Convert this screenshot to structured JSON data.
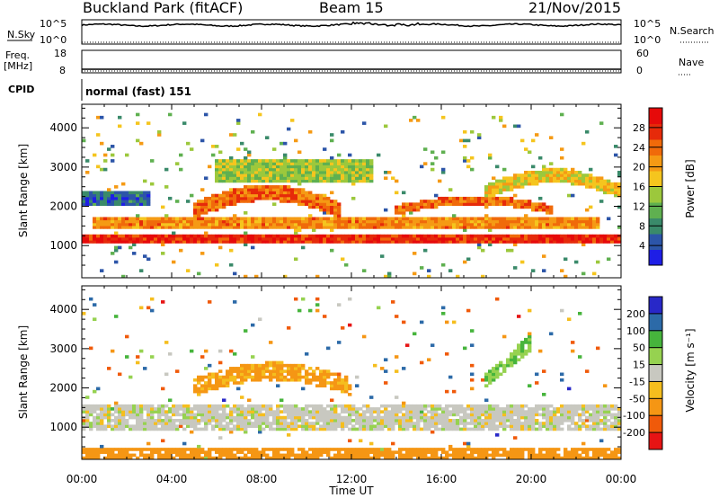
{
  "header": {
    "station": "Buckland Park (fitACF)",
    "beam": "Beam 15",
    "date": "21/Nov/2015"
  },
  "strip_labels": {
    "nsky": "N.Sky",
    "nsky_ticks": [
      "10^5",
      "10^0"
    ],
    "nsearch": "N.Search",
    "nsearch_ticks": [
      "10^5",
      "10^0"
    ],
    "freq_line1": "Freq.",
    "freq_line2": "[MHz]",
    "freq_ticks": [
      "18",
      "8"
    ],
    "nave": "Nave",
    "nave_ticks": [
      "60",
      "0"
    ],
    "cpid": "CPID",
    "cpid_value": "normal (fast) 151"
  },
  "colors": {
    "power_scale": [
      "#1e1ee6",
      "#2c55a8",
      "#3a8a6a",
      "#5fb050",
      "#9cc83c",
      "#f5c51e",
      "#f59a14",
      "#f06a0a",
      "#e62a0a",
      "#e60a0a"
    ],
    "velocity_scale": [
      "#e61414",
      "#f05a0a",
      "#f59614",
      "#f5be1e",
      "#c8c8c0",
      "#96d250",
      "#46b43c",
      "#2c6aa8",
      "#2828c8"
    ],
    "ground_scatter": "#c8c8c0"
  },
  "chart_data": [
    {
      "type": "heatmap",
      "name_label": "Power [dB]",
      "xlabel": "",
      "ylabel": "Slant Range [km]",
      "xlim": [
        0,
        24
      ],
      "ylim": [
        180,
        4600
      ],
      "x_tick_labels": [
        "00:00",
        "04:00",
        "08:00",
        "12:00",
        "16:00",
        "20:00",
        "00:00"
      ],
      "y_ticks": [
        1000,
        2000,
        3000,
        4000
      ],
      "colorbar_ticks": [
        4,
        8,
        12,
        16,
        20,
        24,
        28
      ],
      "colorbar_range": [
        0,
        32
      ],
      "features": [
        {
          "desc": "strong near-range band",
          "t": [
            0,
            24
          ],
          "range": [
            1100,
            1300
          ],
          "power": 28
        },
        {
          "desc": "band",
          "t": [
            0.5,
            23
          ],
          "range": [
            1400,
            1700
          ],
          "power": 22
        },
        {
          "desc": "rising arc",
          "t": [
            5,
            11.5
          ],
          "range": [
            1700,
            2600
          ],
          "power": 24
        },
        {
          "desc": "evening arc",
          "t": [
            14,
            21
          ],
          "range": [
            1800,
            2300
          ],
          "power": 24
        },
        {
          "desc": "far green echoes",
          "t": [
            6,
            13
          ],
          "range": [
            2600,
            3200
          ],
          "power": 14
        },
        {
          "desc": "late arc",
          "t": [
            18,
            24
          ],
          "range": [
            2200,
            3000
          ],
          "power": 18
        },
        {
          "desc": "blue far echoes",
          "t": [
            0,
            3
          ],
          "range": [
            2000,
            2400
          ],
          "power": 6
        }
      ]
    },
    {
      "type": "heatmap",
      "name_label": "Velocity [m s⁻¹]",
      "xlabel": "Time UT",
      "ylabel": "Slant Range [km]",
      "xlim": [
        0,
        24
      ],
      "ylim": [
        180,
        4600
      ],
      "x_tick_labels": [
        "00:00",
        "04:00",
        "08:00",
        "12:00",
        "16:00",
        "20:00",
        "00:00"
      ],
      "y_ticks": [
        1000,
        2000,
        3000,
        4000
      ],
      "colorbar_ticks": [
        "200",
        "100",
        "50",
        "15",
        "-15",
        "-50",
        "-100",
        "-200"
      ],
      "colorbar_range": [
        -250,
        250
      ],
      "features": [
        {
          "desc": "ground scatter band",
          "t": [
            0,
            24
          ],
          "range": [
            900,
            1600
          ],
          "velocity": 0
        },
        {
          "desc": "negative velocity arc",
          "t": [
            5,
            12
          ],
          "range": [
            1800,
            2700
          ],
          "velocity": -60
        },
        {
          "desc": "green positive streak",
          "t": [
            18,
            20
          ],
          "range": [
            2000,
            3200
          ],
          "velocity": 40
        },
        {
          "desc": "near range orange",
          "t": [
            0,
            24
          ],
          "range": [
            200,
            500
          ],
          "velocity": -70
        }
      ]
    }
  ]
}
